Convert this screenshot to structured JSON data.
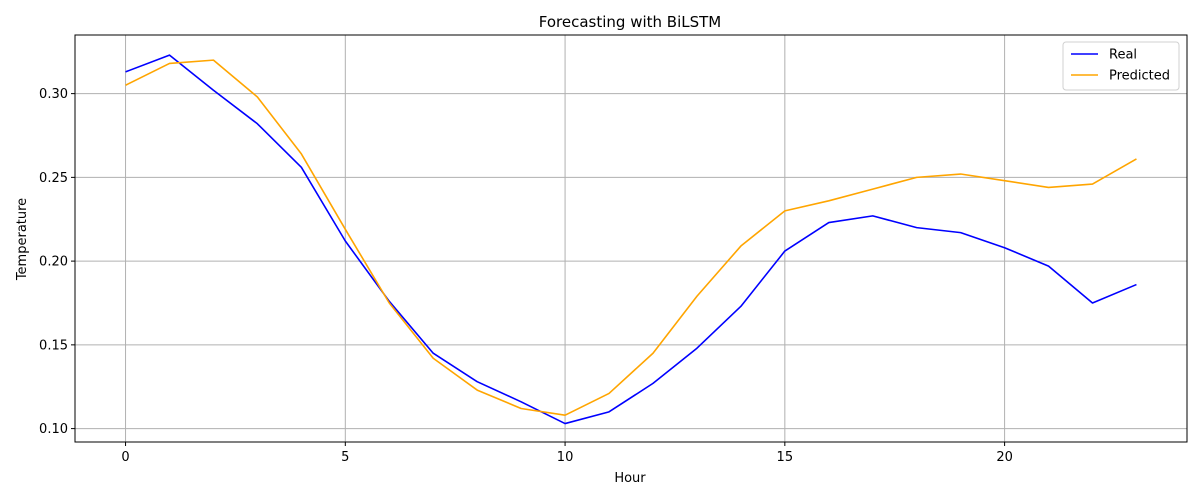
{
  "chart_data": {
    "type": "line",
    "title": "Forecasting with BiLSTM",
    "xlabel": "Hour",
    "ylabel": "Temperature",
    "x": [
      0,
      1,
      2,
      3,
      4,
      5,
      6,
      7,
      8,
      9,
      10,
      11,
      12,
      13,
      14,
      15,
      16,
      17,
      18,
      19,
      20,
      21,
      22,
      23
    ],
    "xlim": [
      -1.15,
      24.15
    ],
    "ylim": [
      0.092,
      0.335
    ],
    "xticks": [
      0,
      5,
      10,
      15,
      20
    ],
    "yticks": [
      0.1,
      0.15,
      0.2,
      0.25,
      0.3
    ],
    "ytick_labels": [
      "0.10",
      "0.15",
      "0.20",
      "0.25",
      "0.30"
    ],
    "grid": true,
    "legend_position": "top-right",
    "series": [
      {
        "name": "Real",
        "color": "#0000ff",
        "values": [
          0.313,
          0.323,
          0.302,
          0.282,
          0.256,
          0.212,
          0.176,
          0.145,
          0.128,
          0.116,
          0.103,
          0.11,
          0.127,
          0.148,
          0.173,
          0.206,
          0.223,
          0.227,
          0.22,
          0.217,
          0.208,
          0.197,
          0.175,
          0.186
        ]
      },
      {
        "name": "Predicted",
        "color": "#ffa500",
        "values": [
          0.305,
          0.318,
          0.32,
          0.298,
          0.264,
          0.219,
          0.175,
          0.142,
          0.123,
          0.112,
          0.108,
          0.121,
          0.145,
          0.179,
          0.209,
          0.23,
          0.236,
          0.243,
          0.25,
          0.252,
          0.248,
          0.244,
          0.246,
          0.261
        ]
      }
    ]
  }
}
